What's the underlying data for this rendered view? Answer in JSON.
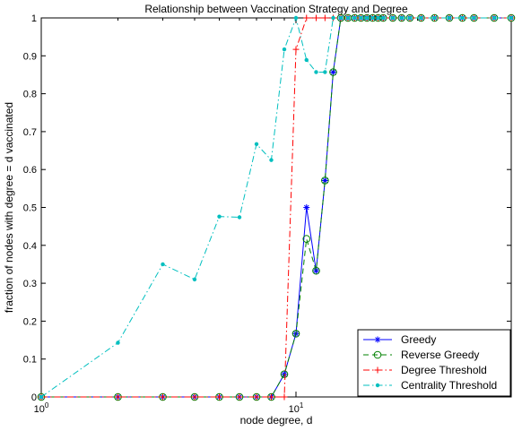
{
  "chart_data": {
    "type": "line",
    "title": "Relationship between Vaccination Strategy and Degree",
    "xlabel": "node degree, d",
    "ylabel": "fraction of nodes with degree = d vaccinated",
    "xscale": "log",
    "xlim": [
      1,
      70
    ],
    "ylim": [
      0,
      1
    ],
    "grid": false,
    "legend_position": "bottom-right",
    "x_ticks": [
      {
        "value": 1,
        "base": "10",
        "exp": "0"
      },
      {
        "value": 10,
        "base": "10",
        "exp": "1"
      }
    ],
    "y_ticks": [
      {
        "value": 0,
        "label": "0"
      },
      {
        "value": 0.1,
        "label": "0.1"
      },
      {
        "value": 0.2,
        "label": "0.2"
      },
      {
        "value": 0.3,
        "label": "0.3"
      },
      {
        "value": 0.4,
        "label": "0.4"
      },
      {
        "value": 0.5,
        "label": "0.5"
      },
      {
        "value": 0.6,
        "label": "0.6"
      },
      {
        "value": 0.7,
        "label": "0.7"
      },
      {
        "value": 0.8,
        "label": "0.8"
      },
      {
        "value": 0.9,
        "label": "0.9"
      },
      {
        "value": 1,
        "label": "1"
      }
    ],
    "series": [
      {
        "name": "Greedy",
        "color": "#0000ff",
        "line": "solid",
        "marker": "star",
        "x": [
          1,
          2,
          3,
          4,
          5,
          6,
          7,
          8,
          9,
          10,
          11,
          12,
          13,
          14,
          15,
          16,
          17,
          18,
          19,
          20,
          21,
          22,
          24,
          26,
          28,
          31,
          35,
          40,
          45,
          50,
          60,
          70
        ],
        "y": [
          0,
          0,
          0,
          0,
          0,
          0,
          0,
          0,
          0.06,
          0.167,
          0.5,
          0.333,
          0.571,
          0.857,
          1,
          1,
          1,
          1,
          1,
          1,
          1,
          1,
          1,
          1,
          1,
          1,
          1,
          1,
          1,
          1,
          1,
          1
        ]
      },
      {
        "name": "Reverse Greedy",
        "color": "#008000",
        "line": "dashed",
        "marker": "circle",
        "x": [
          1,
          2,
          3,
          4,
          5,
          6,
          7,
          8,
          9,
          10,
          11,
          12,
          13,
          14,
          15,
          16,
          17,
          18,
          19,
          20,
          21,
          22,
          24,
          26,
          28,
          31,
          35,
          40,
          45,
          50,
          60,
          70
        ],
        "y": [
          0,
          0,
          0,
          0,
          0,
          0,
          0,
          0,
          0.06,
          0.167,
          0.417,
          0.333,
          0.571,
          0.857,
          1,
          1,
          1,
          1,
          1,
          1,
          1,
          1,
          1,
          1,
          1,
          1,
          1,
          1,
          1,
          1,
          1,
          1
        ]
      },
      {
        "name": "Degree Threshold",
        "color": "#ff0000",
        "line": "dashdot",
        "marker": "plus",
        "x": [
          1,
          2,
          3,
          4,
          5,
          6,
          7,
          8,
          9,
          10,
          11,
          12,
          13,
          14,
          15,
          16,
          17,
          18,
          19,
          20,
          21,
          22,
          24,
          26,
          28,
          31,
          35,
          40,
          45,
          50,
          60,
          70
        ],
        "y": [
          0,
          0,
          0,
          0,
          0,
          0,
          0,
          0,
          0,
          0.917,
          1,
          1,
          1,
          1,
          1,
          1,
          1,
          1,
          1,
          1,
          1,
          1,
          1,
          1,
          1,
          1,
          1,
          1,
          1,
          1,
          1,
          1
        ]
      },
      {
        "name": "Centrality Threshold",
        "color": "#00bfbf",
        "line": "dashdot",
        "marker": "dot",
        "x": [
          1,
          2,
          3,
          4,
          5,
          6,
          7,
          8,
          9,
          10,
          11,
          12,
          13,
          14,
          15,
          16,
          17,
          18,
          19,
          20,
          21,
          22,
          24,
          26,
          28,
          31,
          35,
          40,
          45,
          50,
          60,
          70
        ],
        "y": [
          0,
          0.143,
          0.35,
          0.31,
          0.476,
          0.474,
          0.667,
          0.625,
          0.917,
          1,
          0.889,
          0.857,
          0.857,
          1,
          1,
          1,
          1,
          1,
          1,
          1,
          1,
          1,
          1,
          1,
          1,
          1,
          1,
          1,
          1,
          1,
          1,
          1
        ]
      }
    ]
  }
}
